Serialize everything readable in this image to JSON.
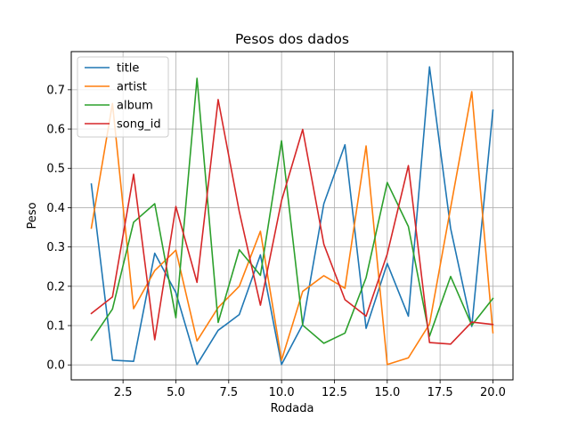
{
  "chart_data": {
    "type": "line",
    "title": "Pesos dos dados",
    "xlabel": "Rodada",
    "ylabel": "Peso",
    "xlim": [
      0.05,
      20.95
    ],
    "ylim": [
      -0.038,
      0.797
    ],
    "xticks": [
      2.5,
      5.0,
      7.5,
      10.0,
      12.5,
      15.0,
      17.5,
      20.0
    ],
    "xtick_labels": [
      "2.5",
      "5.0",
      "7.5",
      "10.0",
      "12.5",
      "15.0",
      "17.5",
      "20.0"
    ],
    "yticks": [
      0.0,
      0.1,
      0.2,
      0.3,
      0.4,
      0.5,
      0.6,
      0.7
    ],
    "ytick_labels": [
      "0.0",
      "0.1",
      "0.2",
      "0.3",
      "0.4",
      "0.5",
      "0.6",
      "0.7"
    ],
    "grid": true,
    "legend_position": "top-left",
    "x": [
      1,
      2,
      3,
      4,
      5,
      6,
      7,
      8,
      9,
      10,
      11,
      12,
      13,
      14,
      15,
      16,
      17,
      18,
      19,
      20
    ],
    "series": [
      {
        "name": "title",
        "color": "#1f77b4",
        "values": [
          0.46,
          0.012,
          0.009,
          0.284,
          0.184,
          0.001,
          0.088,
          0.128,
          0.28,
          0.001,
          0.103,
          0.41,
          0.56,
          0.093,
          0.258,
          0.124,
          0.758,
          0.347,
          0.098,
          0.648
        ]
      },
      {
        "name": "artist",
        "color": "#ff7f0e",
        "values": [
          0.348,
          0.665,
          0.143,
          0.24,
          0.292,
          0.061,
          0.146,
          0.2,
          0.34,
          0.012,
          0.187,
          0.227,
          0.195,
          0.557,
          0.001,
          0.018,
          0.104,
          0.4,
          0.695,
          0.082
        ]
      },
      {
        "name": "album",
        "color": "#2ca02c",
        "values": [
          0.063,
          0.142,
          0.363,
          0.41,
          0.12,
          0.729,
          0.108,
          0.293,
          0.228,
          0.57,
          0.101,
          0.055,
          0.081,
          0.222,
          0.464,
          0.352,
          0.073,
          0.225,
          0.101,
          0.169
        ]
      },
      {
        "name": "song_id",
        "color": "#d62728",
        "values": [
          0.131,
          0.173,
          0.485,
          0.064,
          0.403,
          0.21,
          0.675,
          0.39,
          0.152,
          0.418,
          0.599,
          0.307,
          0.166,
          0.124,
          0.282,
          0.507,
          0.057,
          0.053,
          0.109,
          0.103
        ]
      }
    ]
  }
}
